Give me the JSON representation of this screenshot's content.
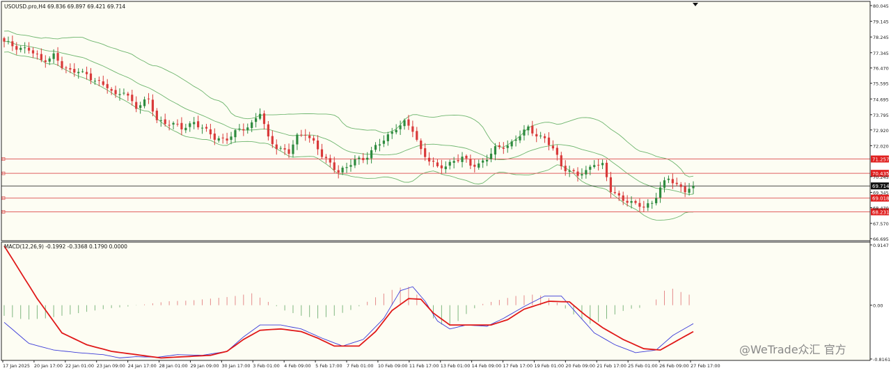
{
  "chart_data": [
    {
      "type": "candlestick",
      "title": "USOUSD.pro,H4  69.836 69.897 69.421 69.714",
      "price_scale": [
        "80.045",
        "79.145",
        "78.245",
        "77.345",
        "76.470",
        "75.595",
        "74.695",
        "73.795",
        "72.920",
        "72.020",
        "70.245",
        "69.345",
        "68.470",
        "67.570",
        "66.695"
      ],
      "ylim": [
        66.695,
        80.045
      ],
      "current_price": {
        "value": 69.714,
        "label": "69.714"
      },
      "horizontal_levels": [
        {
          "value": 71.257,
          "label": "71.257"
        },
        {
          "value": 70.435,
          "label": "70.435"
        },
        {
          "value": 69.018,
          "label": "69.018"
        },
        {
          "value": 68.231,
          "label": "68.231"
        }
      ],
      "x_tick_labels": [
        "17 Jan 2025",
        "20 Jan 17:00",
        "22 Jan 01:00",
        "23 Jan 09:00",
        "24 Jan 17:00",
        "28 Jan 01:00",
        "29 Jan 09:00",
        "30 Jan 17:00",
        "3 Feb 01:00",
        "4 Feb 09:00",
        "5 Feb 17:00",
        "7 Feb 01:00",
        "10 Feb 09:00",
        "11 Feb 17:00",
        "13 Feb 01:00",
        "14 Feb 09:00",
        "17 Feb 17:00",
        "19 Feb 01:00",
        "20 Feb 09:00",
        "21 Feb 17:00",
        "25 Feb 01:00",
        "26 Feb 09:00",
        "27 Feb 17:00"
      ],
      "close_path": [
        [
          0,
          77.9
        ],
        [
          3,
          77.7
        ],
        [
          6,
          77.5
        ],
        [
          9,
          76.9
        ],
        [
          12,
          77.2
        ],
        [
          14,
          76.5
        ],
        [
          16,
          76.3
        ],
        [
          18,
          76.4
        ],
        [
          21,
          75.8
        ],
        [
          25,
          75.5
        ],
        [
          27,
          74.8
        ],
        [
          29,
          75.1
        ],
        [
          32,
          74.3
        ],
        [
          35,
          74.6
        ],
        [
          37,
          73.5
        ],
        [
          40,
          73.3
        ],
        [
          43,
          73.0
        ],
        [
          46,
          73.4
        ],
        [
          49,
          72.8
        ],
        [
          51,
          72.5
        ],
        [
          54,
          72.4
        ],
        [
          57,
          72.9
        ],
        [
          60,
          73.3
        ],
        [
          62,
          73.9
        ],
        [
          64,
          72.4
        ],
        [
          66,
          72.0
        ],
        [
          69,
          71.6
        ],
        [
          71,
          72.5
        ],
        [
          73,
          72.8
        ],
        [
          75,
          72.2
        ],
        [
          77,
          71.4
        ],
        [
          79,
          71.0
        ],
        [
          81,
          70.6
        ],
        [
          83,
          70.7
        ],
        [
          85,
          71.2
        ],
        [
          87,
          71.3
        ],
        [
          89,
          71.7
        ],
        [
          91,
          72.1
        ],
        [
          93,
          72.6
        ],
        [
          95,
          73.1
        ],
        [
          97,
          73.3
        ],
        [
          99,
          72.9
        ],
        [
          101,
          71.8
        ],
        [
          103,
          71.2
        ],
        [
          105,
          70.7
        ],
        [
          107,
          70.9
        ],
        [
          109,
          71.2
        ],
        [
          111,
          71.3
        ],
        [
          113,
          70.9
        ],
        [
          115,
          71.0
        ],
        [
          117,
          71.3
        ],
        [
          119,
          71.8
        ],
        [
          121,
          72.0
        ],
        [
          123,
          72.2
        ],
        [
          125,
          72.6
        ],
        [
          127,
          73.0
        ],
        [
          129,
          72.7
        ],
        [
          131,
          72.4
        ],
        [
          133,
          71.8
        ],
        [
          135,
          70.9
        ],
        [
          137,
          70.6
        ],
        [
          139,
          70.3
        ],
        [
          141,
          70.5
        ],
        [
          143,
          71.1
        ],
        [
          145,
          70.9
        ],
        [
          147,
          69.4
        ],
        [
          149,
          69.1
        ],
        [
          151,
          68.9
        ],
        [
          153,
          68.6
        ],
        [
          155,
          68.5
        ],
        [
          157,
          68.8
        ],
        [
          159,
          69.6
        ],
        [
          161,
          70.1
        ],
        [
          163,
          69.8
        ],
        [
          165,
          69.5
        ],
        [
          167,
          69.7
        ]
      ]
    },
    {
      "type": "macd",
      "label": "MACD(12,26,9) -0.1992 -0.3368 0.1790 0.0000",
      "price_scale": [
        "0.9147",
        "0.00",
        "-0.8161"
      ],
      "ylim": [
        -0.8161,
        0.9147
      ],
      "histogram": [
        [
          0,
          -0.16
        ],
        [
          5,
          -0.22
        ],
        [
          10,
          -0.2
        ],
        [
          15,
          -0.15
        ],
        [
          20,
          -0.1
        ],
        [
          25,
          -0.05
        ],
        [
          30,
          -0.02
        ],
        [
          35,
          0.02
        ],
        [
          40,
          0.06
        ],
        [
          45,
          0.07
        ],
        [
          50,
          0.1
        ],
        [
          55,
          0.13
        ],
        [
          60,
          0.18
        ],
        [
          64,
          0.05
        ],
        [
          68,
          -0.08
        ],
        [
          72,
          -0.16
        ],
        [
          76,
          -0.2
        ],
        [
          80,
          -0.16
        ],
        [
          85,
          -0.05
        ],
        [
          90,
          0.12
        ],
        [
          95,
          0.26
        ],
        [
          98,
          0.28
        ],
        [
          101,
          0.1
        ],
        [
          104,
          -0.2
        ],
        [
          107,
          -0.34
        ],
        [
          110,
          -0.24
        ],
        [
          113,
          -0.08
        ],
        [
          116,
          0.02
        ],
        [
          120,
          0.08
        ],
        [
          124,
          0.14
        ],
        [
          128,
          0.16
        ],
        [
          131,
          0.14
        ],
        [
          134,
          0.04
        ],
        [
          138,
          -0.14
        ],
        [
          142,
          -0.28
        ],
        [
          145,
          -0.24
        ],
        [
          148,
          -0.14
        ],
        [
          151,
          -0.06
        ],
        [
          154,
          -0.04
        ],
        [
          157,
          0.02
        ],
        [
          160,
          0.22
        ],
        [
          162,
          0.25
        ],
        [
          164,
          0.2
        ],
        [
          167,
          0.14
        ]
      ],
      "macd_line": [
        [
          0,
          -0.26
        ],
        [
          6,
          -0.58
        ],
        [
          12,
          -0.68
        ],
        [
          18,
          -0.72
        ],
        [
          24,
          -0.75
        ],
        [
          28,
          -0.8
        ],
        [
          32,
          -0.78
        ],
        [
          37,
          -0.79
        ],
        [
          42,
          -0.75
        ],
        [
          48,
          -0.76
        ],
        [
          54,
          -0.7
        ],
        [
          58,
          -0.48
        ],
        [
          62,
          -0.3
        ],
        [
          67,
          -0.3
        ],
        [
          72,
          -0.36
        ],
        [
          77,
          -0.5
        ],
        [
          82,
          -0.62
        ],
        [
          87,
          -0.52
        ],
        [
          92,
          -0.2
        ],
        [
          96,
          0.22
        ],
        [
          99,
          0.28
        ],
        [
          102,
          0.06
        ],
        [
          105,
          -0.24
        ],
        [
          108,
          -0.36
        ],
        [
          112,
          -0.3
        ],
        [
          117,
          -0.32
        ],
        [
          121,
          -0.2
        ],
        [
          126,
          -0.02
        ],
        [
          131,
          0.14
        ],
        [
          135,
          0.14
        ],
        [
          139,
          -0.14
        ],
        [
          143,
          -0.42
        ],
        [
          148,
          -0.6
        ],
        [
          153,
          -0.72
        ],
        [
          158,
          -0.68
        ],
        [
          162,
          -0.46
        ],
        [
          167,
          -0.28
        ]
      ],
      "signal_line": [
        [
          0,
          0.9
        ],
        [
          8,
          0.1
        ],
        [
          14,
          -0.42
        ],
        [
          20,
          -0.6
        ],
        [
          26,
          -0.7
        ],
        [
          32,
          -0.75
        ],
        [
          38,
          -0.8
        ],
        [
          44,
          -0.78
        ],
        [
          50,
          -0.76
        ],
        [
          54,
          -0.7
        ],
        [
          58,
          -0.52
        ],
        [
          62,
          -0.38
        ],
        [
          67,
          -0.36
        ],
        [
          72,
          -0.4
        ],
        [
          76,
          -0.5
        ],
        [
          80,
          -0.62
        ],
        [
          86,
          -0.62
        ],
        [
          90,
          -0.4
        ],
        [
          94,
          -0.08
        ],
        [
          98,
          0.1
        ],
        [
          101,
          0.09
        ],
        [
          104,
          -0.12
        ],
        [
          108,
          -0.3
        ],
        [
          112,
          -0.3
        ],
        [
          118,
          -0.3
        ],
        [
          122,
          -0.22
        ],
        [
          126,
          -0.06
        ],
        [
          132,
          0.06
        ],
        [
          137,
          0.05
        ],
        [
          141,
          -0.16
        ],
        [
          145,
          -0.34
        ],
        [
          150,
          -0.52
        ],
        [
          155,
          -0.66
        ],
        [
          159,
          -0.68
        ],
        [
          163,
          -0.54
        ],
        [
          167,
          -0.4
        ]
      ]
    }
  ],
  "watermark": "@WeTrade众汇 官方",
  "colors": {
    "background": "#ffffff",
    "plot_bg": "#fdfdf3",
    "bull": "#2e8b3f",
    "bear": "#d93a3a",
    "band": "#6db56d",
    "level": "#e06060",
    "macd": "#3a3ad8",
    "signal": "#e01818",
    "hist_pos": "#e58a8a",
    "hist_neg": "#7fb77f",
    "axis": "#333333",
    "label_bg": "#e02020",
    "current_bg": "#111111"
  }
}
